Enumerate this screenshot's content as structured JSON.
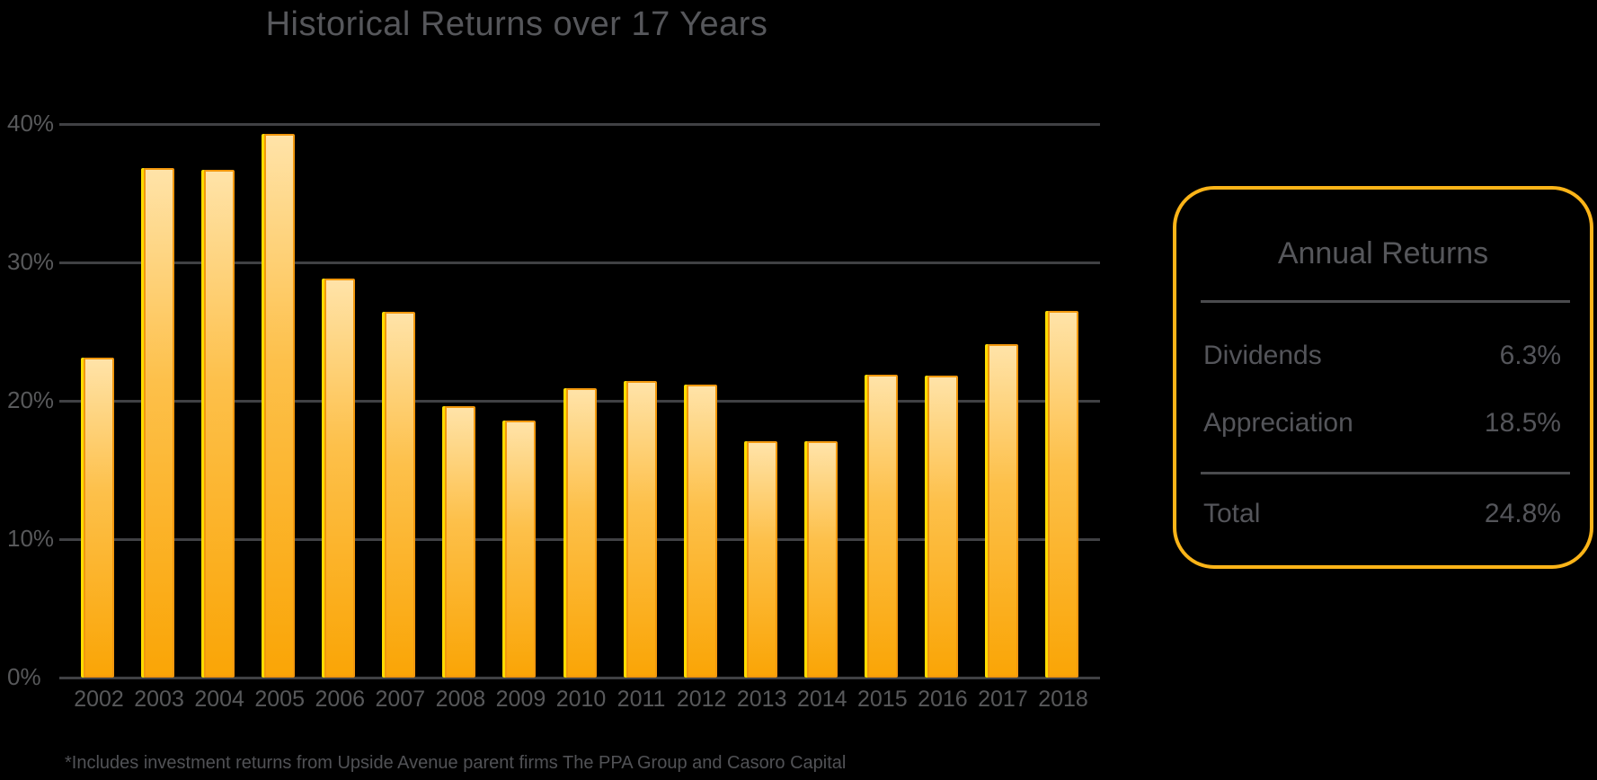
{
  "title": "Historical Returns over 17 Years",
  "chart_data": {
    "type": "bar",
    "title": "Historical Returns over 17 Years",
    "categories": [
      "2002",
      "2003",
      "2004",
      "2005",
      "2006",
      "2007",
      "2008",
      "2009",
      "2010",
      "2011",
      "2012",
      "2013",
      "2014",
      "2015",
      "2016",
      "2017",
      "2018"
    ],
    "values": [
      23.1,
      36.8,
      36.7,
      39.3,
      28.8,
      26.4,
      19.6,
      18.6,
      20.9,
      21.4,
      21.2,
      17.1,
      17.1,
      21.9,
      21.8,
      24.1,
      26.5
    ],
    "unit": "%",
    "xlabel": "",
    "ylabel": "",
    "ylim": [
      0,
      40
    ],
    "y_tick_labels": [
      "40%",
      "30%",
      "20%",
      "10%",
      "0%"
    ],
    "y_tick_values": [
      40,
      30,
      20,
      10,
      0
    ],
    "grid": true,
    "legend_position": "right"
  },
  "legend_panel": {
    "title": "Annual Returns",
    "rows": [
      {
        "label": "Dividends",
        "value": "6.3%"
      },
      {
        "label": "Appreciation",
        "value": "18.5%"
      }
    ],
    "total_row": {
      "label": "Total",
      "value": "24.8%"
    }
  },
  "footnote": "*Includes investment returns from Upside Avenue parent firms The PPA Group and Casoro Capital",
  "colors": {
    "background": "#000000",
    "text_gray": "#56575b",
    "gridline": "#404144",
    "bar_gradient_top": "#ffe3a8",
    "bar_gradient_mid": "#fdc04a",
    "bar_gradient_bottom": "#faa506",
    "bar_border": "#f2980e",
    "bar_accent_line": "#ffdc00",
    "legend_border": "#fbb418"
  }
}
